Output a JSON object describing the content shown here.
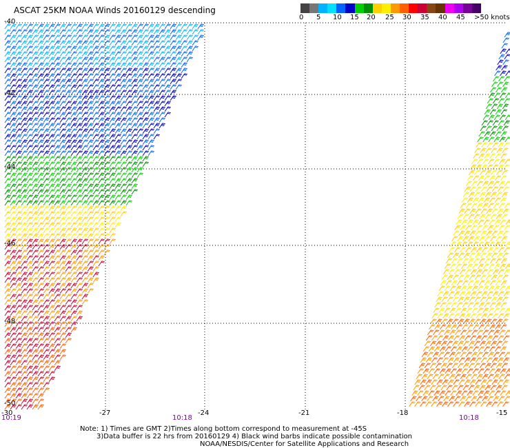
{
  "title": "ASCAT 25KM NOAA Winds 20160129 descending",
  "scale": {
    "colors": [
      "#444444",
      "#777777",
      "#00b4ff",
      "#00e1ff",
      "#0064ff",
      "#0000c8",
      "#00d000",
      "#009000",
      "#ffd000",
      "#ffee00",
      "#ff9900",
      "#ff6000",
      "#ff0000",
      "#cc0033",
      "#884411",
      "#663300",
      "#ee00ee",
      "#aa00ee",
      "#770099",
      "#440066"
    ],
    "labels": [
      "0",
      "5",
      "10",
      "15",
      "20",
      "25",
      "30",
      "35",
      "40",
      "45",
      ">50 knots"
    ]
  },
  "map": {
    "lon_ticks": [
      "-30",
      "-27",
      "-24",
      "-21",
      "-18",
      "-15"
    ],
    "lat_ticks": [
      "-40",
      "-42",
      "-44",
      "-46",
      "-48",
      "-50"
    ],
    "time_labels": [
      "10:19",
      "10:18",
      "10:18"
    ]
  },
  "notes": [
    "Note: 1) Times are GMT 2)Times along bottom correspond to measurement at -45S",
    "3)Data buffer is 22 hrs from 20160129 4) Black wind barbs indicate possible contamination",
    "NOAA/NESDIS/Center for Satellite Applications and Research"
  ]
}
